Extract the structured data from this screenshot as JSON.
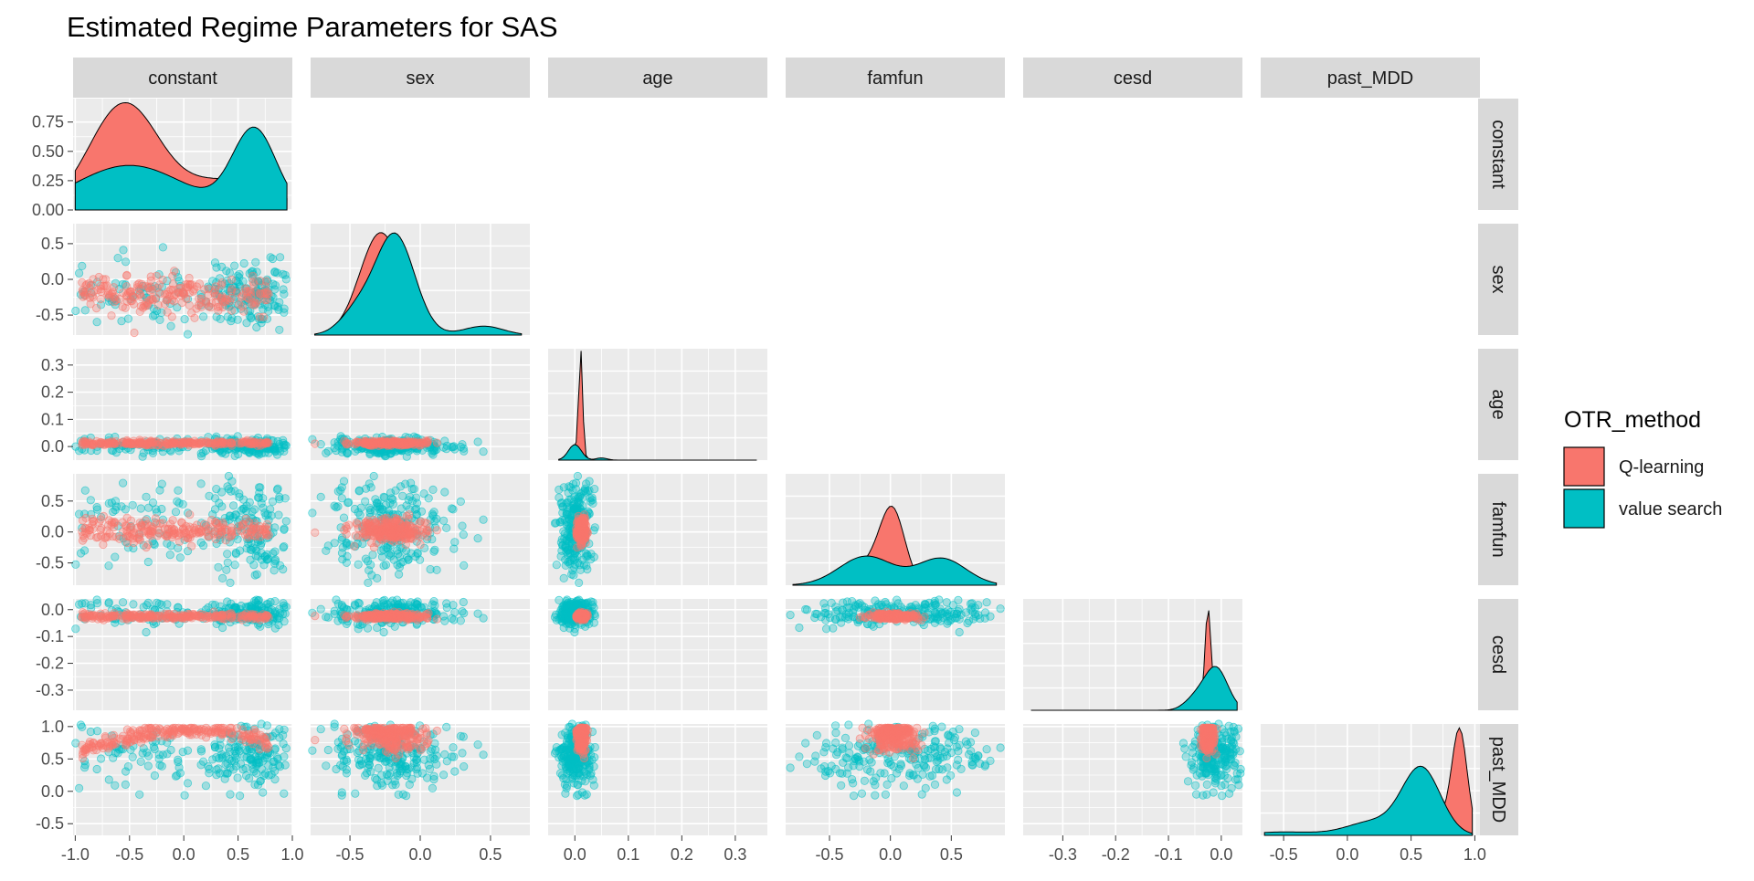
{
  "chart_data": {
    "type": "scatter",
    "subtype": "pairs-matrix",
    "title": "Estimated Regime Parameters for SAS",
    "variables": [
      "constant",
      "sex",
      "age",
      "famfun",
      "cesd",
      "past_MDD"
    ],
    "legend": {
      "title": "OTR_method",
      "position": "right",
      "entries": [
        {
          "label": "Q-learning",
          "color": "#F8766D"
        },
        {
          "label": "value search",
          "color": "#00BFC4"
        }
      ]
    },
    "colors": {
      "panel_bg": "#EBEBEB",
      "grid": "#FFFFFF",
      "strip_bg": "#D9D9D9",
      "text": "#1A1A1A",
      "axis_text": "#4D4D4D"
    },
    "x_ticks": [
      [
        "-1.0",
        "-0.5",
        "0.0",
        "0.5",
        "1.0"
      ],
      [
        "-0.5",
        "0.0",
        "0.5"
      ],
      [
        "0.0",
        "0.1",
        "0.2",
        "0.3"
      ],
      [
        "-0.5",
        "0.0",
        "0.5"
      ],
      [
        "-0.3",
        "-0.2",
        "-0.1",
        "0.0"
      ],
      [
        "-0.5",
        "0.0",
        "0.5",
        "1.0"
      ]
    ],
    "y_ticks": [
      [
        "0.00",
        "0.25",
        "0.50",
        "0.75"
      ],
      [
        "-0.5",
        "0.0",
        "0.5"
      ],
      [
        "0.0",
        "0.1",
        "0.2",
        "0.3"
      ],
      [
        "-0.5",
        "0.0",
        "0.5"
      ],
      [
        "-0.3",
        "-0.2",
        "-0.1",
        "0.0"
      ],
      [
        "-0.5",
        "0.0",
        "0.5",
        "1.0"
      ]
    ],
    "axis_ranges": {
      "constant": [
        -1.02,
        1.0
      ],
      "sex": [
        -0.78,
        0.78
      ],
      "age": [
        -0.05,
        0.36
      ],
      "famfun": [
        -0.86,
        0.94
      ],
      "cesd": [
        -0.375,
        0.04
      ],
      "past_MDD": [
        -0.68,
        1.04
      ],
      "constant_density_y": [
        0,
        0.95
      ]
    },
    "ranges": {
      "constant": [
        -1.0,
        0.95
      ],
      "sex": [
        -0.75,
        0.72
      ],
      "age": [
        -0.03,
        0.34
      ],
      "famfun": [
        -0.8,
        0.87
      ],
      "cesd": [
        -0.36,
        0.03
      ],
      "past_MDD": [
        -0.65,
        0.98
      ]
    },
    "density_peaks": {
      "constant": {
        "Q-learning": [
          -0.55,
          0.9
        ],
        "value search": [
          0.65,
          0.87
        ]
      },
      "sex": {
        "Q-learning": [
          -0.28
        ],
        "value search": [
          -0.18
        ]
      },
      "age": {
        "Q-learning": [
          0.01
        ],
        "value search": [
          0.0
        ]
      },
      "famfun": {
        "Q-learning": [
          0.02
        ],
        "value search": [
          -0.2,
          0.4
        ]
      },
      "cesd": {
        "Q-learning": [
          -0.025
        ],
        "value search": [
          -0.01
        ]
      },
      "past_MDD": {
        "Q-learning": [
          0.88
        ],
        "value search": [
          0.6
        ]
      }
    }
  }
}
